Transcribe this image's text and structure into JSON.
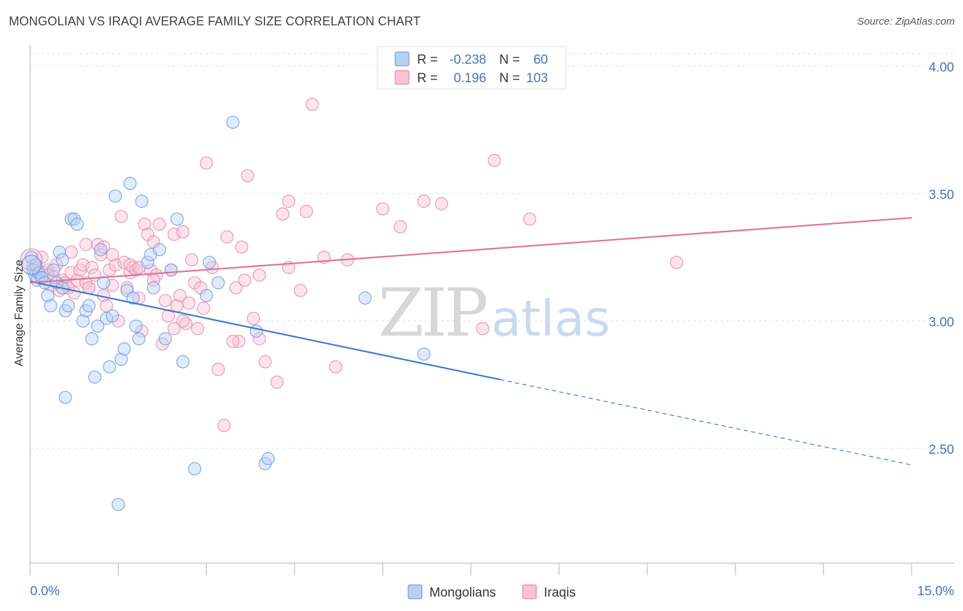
{
  "header": {
    "title": "MONGOLIAN VS IRAQI AVERAGE FAMILY SIZE CORRELATION CHART",
    "source": "Source: ZipAtlas.com"
  },
  "watermark": {
    "zip": "ZIP",
    "atlas": "atlas"
  },
  "legend": {
    "r_label": "R =",
    "n_label": "N =",
    "rows": [
      {
        "r": "-0.238",
        "n": "60",
        "color": "#6f9be0",
        "fill": "#b9d0f3"
      },
      {
        "r": "0.196",
        "n": "103",
        "color": "#e888aa",
        "fill": "#f7c3d5"
      }
    ]
  },
  "bottom_legend": [
    {
      "label": "Mongolians",
      "color": "#6f9be0",
      "fill": "#b9d0f3"
    },
    {
      "label": "Iraqis",
      "color": "#e888aa",
      "fill": "#f7c3d5"
    }
  ],
  "chart_data": {
    "type": "scatter",
    "title": "MONGOLIAN VS IRAQI AVERAGE FAMILY SIZE CORRELATION CHART",
    "xlabel": "",
    "ylabel": "Average Family Size",
    "xlim": [
      0,
      15
    ],
    "ylim": [
      2.05,
      4.05
    ],
    "x_tick_labels": [
      {
        "value": 0,
        "label": "0.0%"
      },
      {
        "value": 15,
        "label": "15.0%"
      }
    ],
    "y_ticks": [
      {
        "value": 4.0,
        "label": "4.00"
      },
      {
        "value": 3.5,
        "label": "3.50"
      },
      {
        "value": 3.0,
        "label": "3.00"
      },
      {
        "value": 2.5,
        "label": "2.50"
      }
    ],
    "series": [
      {
        "name": "Mongolians",
        "color": "#6f9be0",
        "fill": "#b9d0f3",
        "trend": {
          "x0": 0,
          "y0": 3.155,
          "x1": 8.0,
          "y1": 2.77,
          "dash_to_x": 15,
          "dash_to_y": 2.435,
          "line_color": "#3a78d4"
        },
        "points": [
          [
            0.02,
            3.25
          ],
          [
            0.05,
            3.2
          ],
          [
            0.08,
            3.18
          ],
          [
            0.1,
            3.22
          ],
          [
            0.12,
            3.16
          ],
          [
            0.15,
            3.19
          ],
          [
            0.2,
            3.17
          ],
          [
            0.25,
            3.15
          ],
          [
            0.3,
            3.1
          ],
          [
            0.35,
            3.06
          ],
          [
            0.4,
            3.2
          ],
          [
            0.45,
            3.15
          ],
          [
            0.5,
            3.27
          ],
          [
            0.55,
            3.24
          ],
          [
            0.6,
            3.04
          ],
          [
            0.65,
            3.06
          ],
          [
            0.7,
            3.4
          ],
          [
            0.75,
            3.4
          ],
          [
            0.8,
            3.38
          ],
          [
            0.9,
            3.0
          ],
          [
            0.95,
            3.04
          ],
          [
            1.0,
            3.06
          ],
          [
            1.05,
            2.93
          ],
          [
            1.1,
            2.78
          ],
          [
            1.15,
            2.98
          ],
          [
            1.2,
            3.28
          ],
          [
            1.25,
            3.15
          ],
          [
            1.3,
            3.01
          ],
          [
            1.35,
            2.82
          ],
          [
            1.4,
            3.02
          ],
          [
            1.45,
            3.49
          ],
          [
            1.5,
            2.28
          ],
          [
            1.55,
            2.85
          ],
          [
            1.6,
            2.89
          ],
          [
            1.65,
            3.12
          ],
          [
            1.7,
            3.54
          ],
          [
            1.75,
            3.09
          ],
          [
            1.8,
            2.98
          ],
          [
            1.85,
            2.93
          ],
          [
            1.9,
            3.47
          ],
          [
            2.0,
            3.23
          ],
          [
            2.05,
            3.26
          ],
          [
            2.1,
            3.13
          ],
          [
            2.2,
            3.28
          ],
          [
            2.3,
            2.93
          ],
          [
            2.4,
            3.2
          ],
          [
            2.5,
            3.4
          ],
          [
            2.6,
            2.84
          ],
          [
            0.6,
            2.7
          ],
          [
            2.8,
            2.42
          ],
          [
            3.0,
            3.1
          ],
          [
            3.05,
            3.23
          ],
          [
            3.2,
            3.15
          ],
          [
            3.45,
            3.78
          ],
          [
            3.85,
            2.96
          ],
          [
            4.0,
            2.44
          ],
          [
            4.05,
            2.46
          ],
          [
            5.7,
            3.09
          ],
          [
            6.7,
            2.87
          ],
          [
            0.55,
            3.13
          ]
        ]
      },
      {
        "name": "Iraqis",
        "color": "#e888aa",
        "fill": "#f7c3d5",
        "trend": {
          "x0": 0,
          "y0": 3.15,
          "x1": 15,
          "y1": 3.405,
          "line_color": "#e0709a"
        },
        "points": [
          [
            0.05,
            3.22
          ],
          [
            0.1,
            3.2
          ],
          [
            0.15,
            3.18
          ],
          [
            0.2,
            3.25
          ],
          [
            0.25,
            3.19
          ],
          [
            0.3,
            3.2
          ],
          [
            0.35,
            3.14
          ],
          [
            0.4,
            3.17
          ],
          [
            0.45,
            3.22
          ],
          [
            0.5,
            3.12
          ],
          [
            0.55,
            3.16
          ],
          [
            0.6,
            3.15
          ],
          [
            0.65,
            3.13
          ],
          [
            0.7,
            3.19
          ],
          [
            0.75,
            3.11
          ],
          [
            0.8,
            3.16
          ],
          [
            0.85,
            3.2
          ],
          [
            0.9,
            3.22
          ],
          [
            0.95,
            3.15
          ],
          [
            1.0,
            3.13
          ],
          [
            1.05,
            3.21
          ],
          [
            1.1,
            3.18
          ],
          [
            1.15,
            3.3
          ],
          [
            1.2,
            3.26
          ],
          [
            1.25,
            3.1
          ],
          [
            1.3,
            3.06
          ],
          [
            1.35,
            3.2
          ],
          [
            1.4,
            3.14
          ],
          [
            1.45,
            3.22
          ],
          [
            1.5,
            3.0
          ],
          [
            1.55,
            3.41
          ],
          [
            1.6,
            3.23
          ],
          [
            1.65,
            3.13
          ],
          [
            1.7,
            3.19
          ],
          [
            1.75,
            3.21
          ],
          [
            1.8,
            3.2
          ],
          [
            1.85,
            3.09
          ],
          [
            1.9,
            2.96
          ],
          [
            1.95,
            3.38
          ],
          [
            2.0,
            3.34
          ],
          [
            2.05,
            3.2
          ],
          [
            2.1,
            3.31
          ],
          [
            2.15,
            3.18
          ],
          [
            2.2,
            3.38
          ],
          [
            2.25,
            2.91
          ],
          [
            2.3,
            3.08
          ],
          [
            2.35,
            3.02
          ],
          [
            2.4,
            3.2
          ],
          [
            2.45,
            3.34
          ],
          [
            2.5,
            3.06
          ],
          [
            2.55,
            3.1
          ],
          [
            2.6,
            3.35
          ],
          [
            2.65,
            2.99
          ],
          [
            2.7,
            3.07
          ],
          [
            2.75,
            3.24
          ],
          [
            2.8,
            3.15
          ],
          [
            2.85,
            2.97
          ],
          [
            2.9,
            3.13
          ],
          [
            2.95,
            3.05
          ],
          [
            3.0,
            3.62
          ],
          [
            3.1,
            3.21
          ],
          [
            3.2,
            2.81
          ],
          [
            3.3,
            2.59
          ],
          [
            3.35,
            3.33
          ],
          [
            3.5,
            3.13
          ],
          [
            3.55,
            2.92
          ],
          [
            3.6,
            3.29
          ],
          [
            3.65,
            3.16
          ],
          [
            3.7,
            3.57
          ],
          [
            3.8,
            3.01
          ],
          [
            3.9,
            3.18
          ],
          [
            4.0,
            2.84
          ],
          [
            4.2,
            2.76
          ],
          [
            4.3,
            3.42
          ],
          [
            4.4,
            3.47
          ],
          [
            4.6,
            3.12
          ],
          [
            4.7,
            3.43
          ],
          [
            4.8,
            3.85
          ],
          [
            5.0,
            3.25
          ],
          [
            5.2,
            2.82
          ],
          [
            5.4,
            3.24
          ],
          [
            6.0,
            3.44
          ],
          [
            6.3,
            3.37
          ],
          [
            6.7,
            3.47
          ],
          [
            7.0,
            3.46
          ],
          [
            7.7,
            2.97
          ],
          [
            7.9,
            3.63
          ],
          [
            8.5,
            3.4
          ],
          [
            11.0,
            3.23
          ],
          [
            2.6,
            3.0
          ],
          [
            1.7,
            3.22
          ],
          [
            2.1,
            3.16
          ],
          [
            0.95,
            3.3
          ],
          [
            1.25,
            3.29
          ],
          [
            0.7,
            3.27
          ],
          [
            3.45,
            2.92
          ],
          [
            4.4,
            3.21
          ],
          [
            1.0,
            3.13
          ],
          [
            1.4,
            3.26
          ],
          [
            2.45,
            2.97
          ],
          [
            1.85,
            3.21
          ],
          [
            0.3,
            3.18
          ],
          [
            3.9,
            2.93
          ]
        ]
      }
    ]
  }
}
